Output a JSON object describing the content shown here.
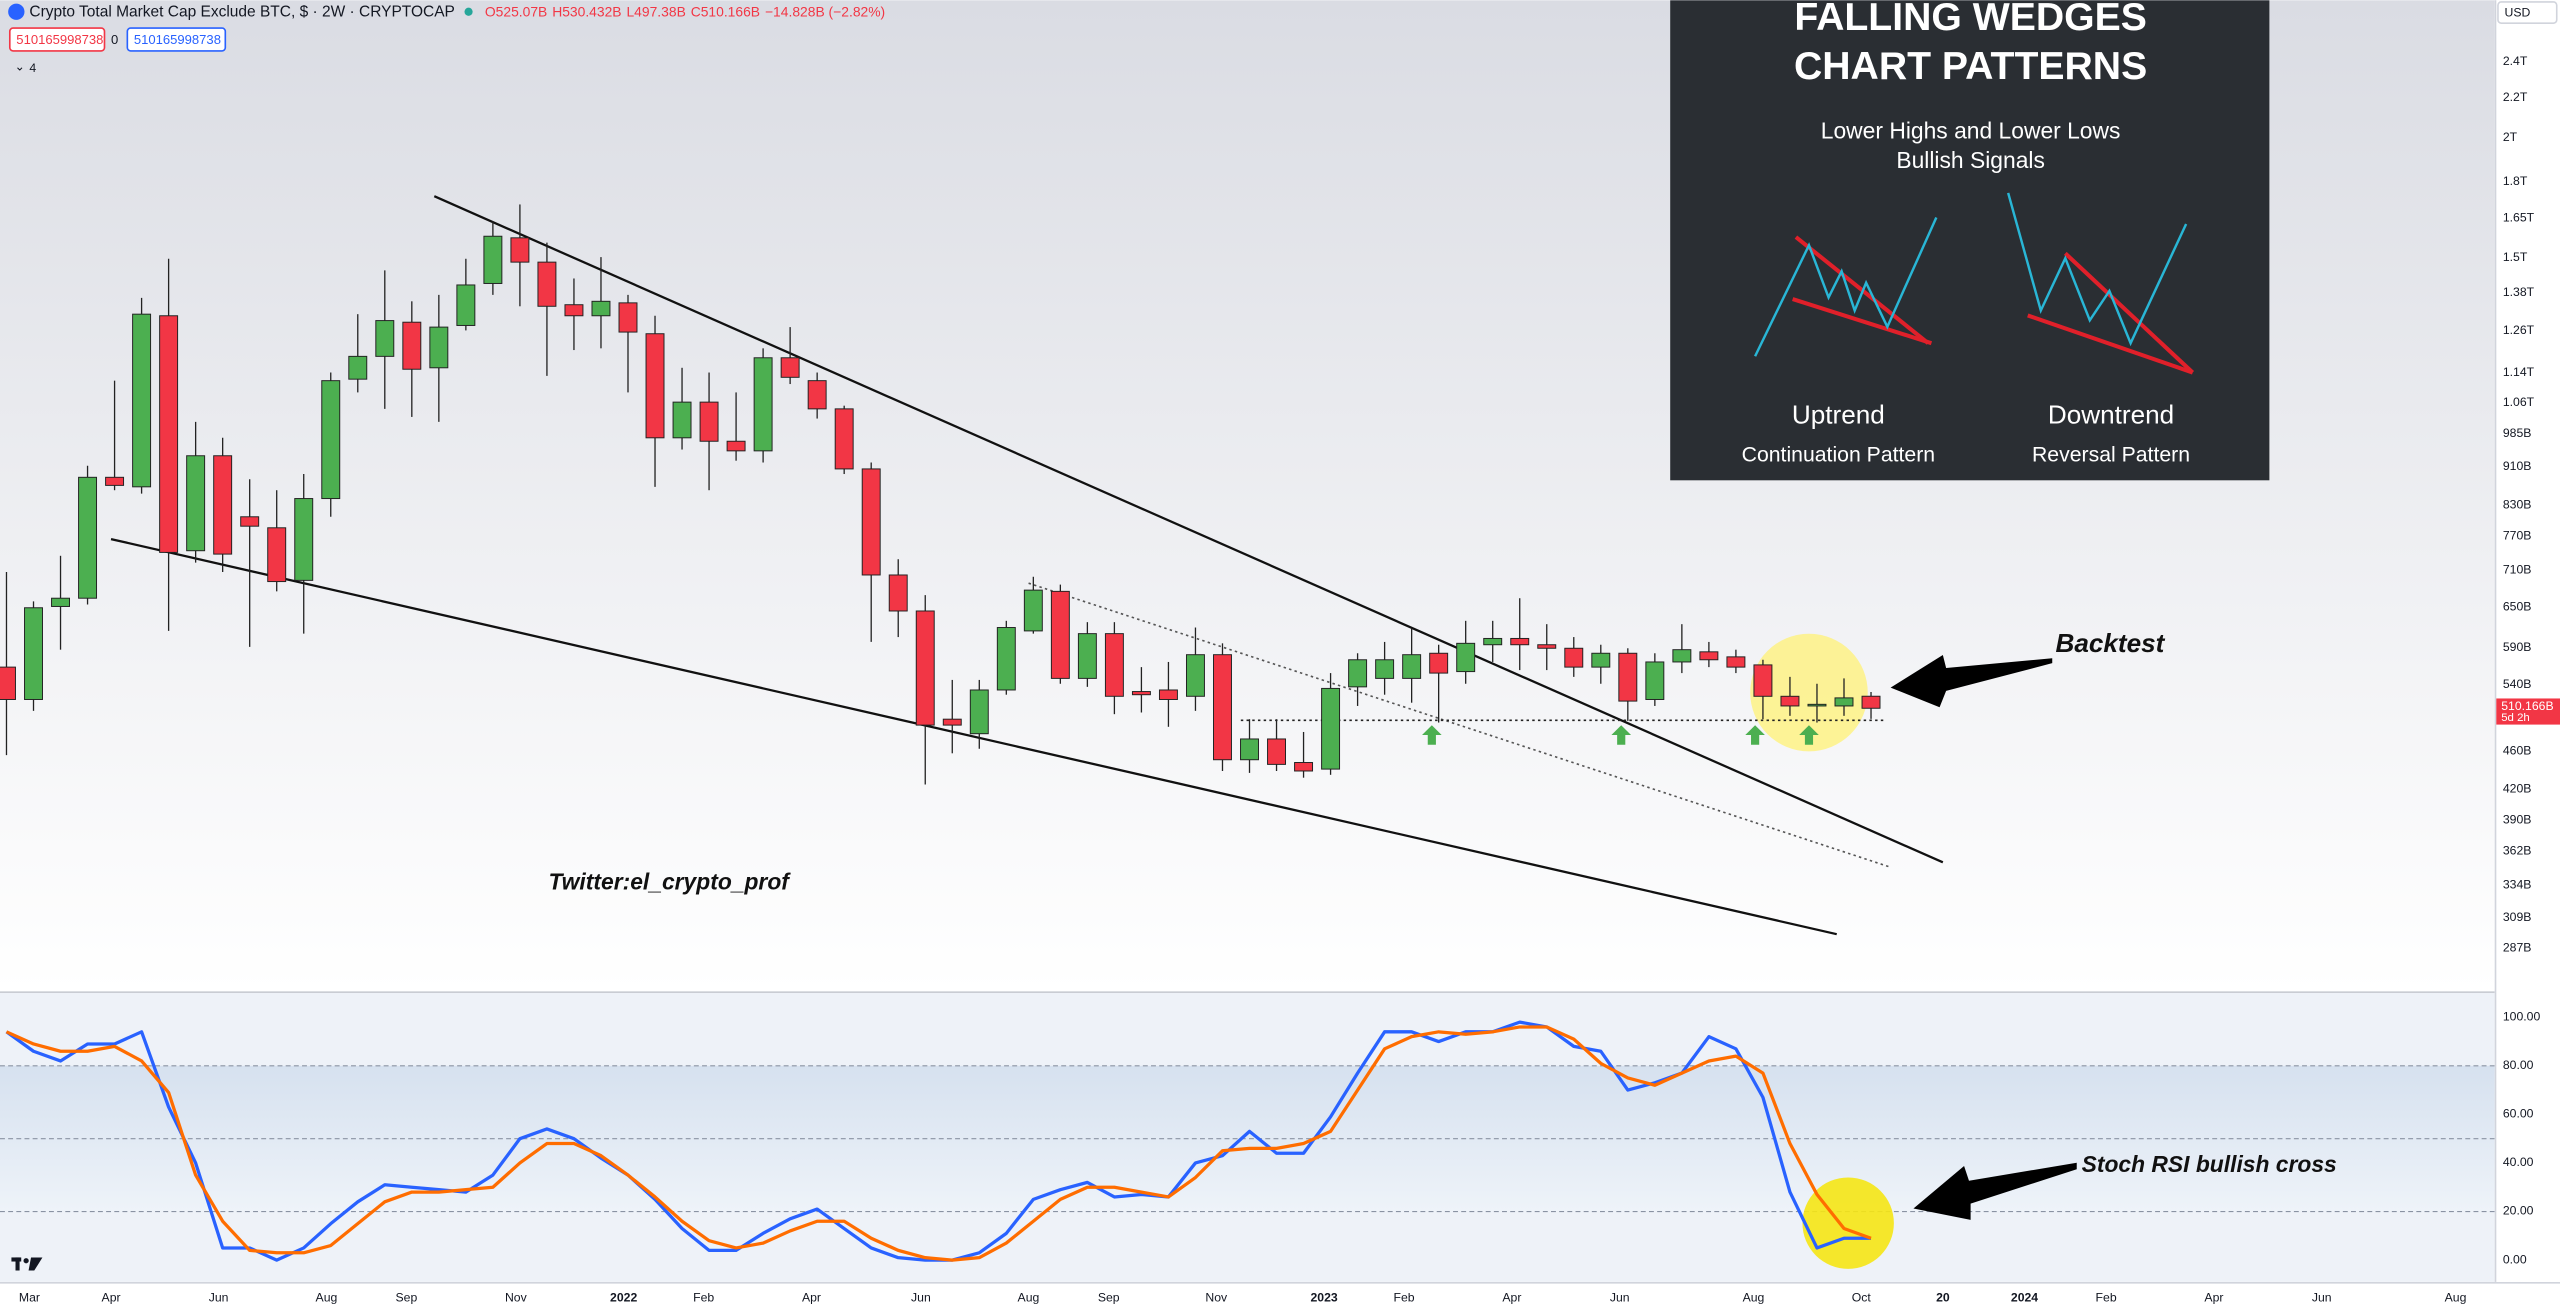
{
  "header": {
    "symbol": "Crypto Total Market Cap Exclude BTC, $ · 2W · CRYPTOCAP",
    "ohlc": [
      "O525.07B",
      "H530.432B",
      "L497.38B",
      "C510.166B",
      "−14.828B (−2.82%)"
    ],
    "bid": "510165998738",
    "spread": "0",
    "ask": "510165998738",
    "indicators": "4",
    "currency": "USD"
  },
  "infographic": {
    "title": [
      "FALLING WEDGES",
      "CHART PATTERNS"
    ],
    "subtitle": [
      "Lower Highs and Lower Lows",
      "Bullish Signals"
    ],
    "patterns": [
      {
        "name": "Uptrend",
        "kind": "Continuation Pattern"
      },
      {
        "name": "Downtrend",
        "kind": "Reversal Pattern"
      }
    ]
  },
  "chart_data": [
    {
      "type": "candlestick",
      "log_scale": true,
      "up_color": "#4caf50",
      "down_color": "#f23645",
      "x": [
        0,
        1,
        2,
        3,
        4,
        5,
        6,
        7,
        8,
        9,
        10,
        11,
        12,
        13,
        14,
        15,
        16,
        17,
        18,
        19,
        20,
        21,
        22,
        23,
        24,
        25,
        26,
        27,
        28,
        29,
        30,
        31,
        32,
        33,
        34,
        35,
        36,
        37,
        38,
        39,
        40,
        41,
        42,
        43,
        44,
        45,
        46,
        47,
        48,
        49,
        50,
        51,
        52,
        53,
        54,
        55,
        56,
        57,
        58,
        59,
        60,
        61,
        62,
        63,
        64,
        65,
        66,
        67,
        68,
        69
      ],
      "open": [
        563,
        521,
        651,
        664,
        887,
        867,
        1306,
        744,
        934,
        807,
        786,
        693,
        843,
        1122,
        1185,
        1286,
        1153,
        1276,
        1411,
        1574,
        1485,
        1341,
        1306,
        1347,
        1251,
        975,
        1062,
        967,
        945,
        1181,
        1118,
        1045,
        905,
        702,
        644,
        497,
        480,
        533,
        614,
        675,
        548,
        610,
        531,
        533,
        525,
        580,
        451,
        474,
        448,
        441,
        537,
        548,
        548,
        582,
        557,
        594,
        603,
        594,
        589,
        563,
        582,
        521,
        570,
        584,
        577,
        566,
        525,
        513,
        513,
        525.07
      ],
      "high": [
        707,
        659,
        735,
        912,
        1118,
        1363,
        1497,
        1013,
        975,
        883,
        860,
        894,
        1140,
        1311,
        1456,
        1352,
        1373,
        1497,
        1638,
        1705,
        1556,
        1428,
        1503,
        1373,
        1306,
        1153,
        1140,
        1087,
        1208,
        1271,
        1140,
        1053,
        919,
        729,
        669,
        546,
        546,
        629,
        699,
        686,
        627,
        627,
        563,
        570,
        619,
        596,
        497,
        497,
        482,
        555,
        582,
        598,
        617,
        594,
        629,
        629,
        664,
        624,
        605,
        594,
        589,
        582,
        624,
        598,
        587,
        573,
        550,
        541,
        548,
        530.432
      ],
      "low": [
        456,
        507,
        587,
        654,
        860,
        853,
        614,
        723,
        707,
        591,
        675,
        610,
        807,
        1087,
        1045,
        1025,
        1013,
        1261,
        1373,
        1336,
        1131,
        1203,
        1208,
        1087,
        867,
        948,
        860,
        923,
        919,
        1109,
        1021,
        894,
        598,
        605,
        425,
        458,
        463,
        527,
        610,
        541,
        537,
        503,
        505,
        488,
        507,
        439,
        437,
        439,
        432,
        435,
        513,
        527,
        517,
        493,
        541,
        570,
        559,
        559,
        550,
        541,
        495,
        513,
        555,
        563,
        555,
        497,
        501,
        493,
        501,
        497.38
      ],
      "close": [
        521,
        649,
        664,
        887,
        870,
        1311,
        741,
        934,
        738,
        789,
        691,
        843,
        1118,
        1185,
        1291,
        1149,
        1271,
        1406,
        1580,
        1485,
        1336,
        1306,
        1352,
        1256,
        975,
        1062,
        967,
        945,
        1181,
        1127,
        1045,
        905,
        702,
        644,
        490,
        490,
        533,
        619,
        677,
        548,
        610,
        525,
        527,
        521,
        580,
        451,
        474,
        446,
        439,
        535,
        573,
        573,
        580,
        555,
        596,
        603,
        594,
        589,
        563,
        582,
        519,
        570,
        587,
        573,
        563,
        525,
        513,
        515,
        523,
        510.166
      ],
      "xlim": [
        -0.24,
        92.08
      ],
      "ylim": [
        259,
        2780
      ],
      "xticks": [
        {
          "value": 0.85,
          "label": "Mar"
        },
        {
          "value": 3.87,
          "label": "Apr"
        },
        {
          "value": 7.85,
          "label": "Jun"
        },
        {
          "value": 11.84,
          "label": "Aug"
        },
        {
          "value": 14.8,
          "label": "Sep"
        },
        {
          "value": 18.85,
          "label": "Nov"
        },
        {
          "value": 22.84,
          "label": "2022"
        },
        {
          "value": 25.8,
          "label": "Feb"
        },
        {
          "value": 29.79,
          "label": "Apr"
        },
        {
          "value": 33.84,
          "label": "Jun"
        },
        {
          "value": 37.82,
          "label": "Aug"
        },
        {
          "value": 40.79,
          "label": "Sep"
        },
        {
          "value": 44.77,
          "label": "Nov"
        },
        {
          "value": 48.76,
          "label": "2023"
        },
        {
          "value": 51.72,
          "label": "Feb"
        },
        {
          "value": 55.71,
          "label": "Apr"
        },
        {
          "value": 59.7,
          "label": "Jun"
        },
        {
          "value": 64.65,
          "label": "Aug"
        },
        {
          "value": 68.64,
          "label": "Oct"
        },
        {
          "value": 71.66,
          "label": "20"
        },
        {
          "value": 74.68,
          "label": "2024"
        },
        {
          "value": 77.7,
          "label": "Feb"
        },
        {
          "value": 81.69,
          "label": "Apr"
        },
        {
          "value": 85.68,
          "label": "Jun"
        },
        {
          "value": 90.63,
          "label": "Aug"
        }
      ],
      "yticks": [
        {
          "value": 2400,
          "label": "2.4T"
        },
        {
          "value": 2200,
          "label": "2.2T"
        },
        {
          "value": 2000,
          "label": "2T"
        },
        {
          "value": 1800,
          "label": "1.8T"
        },
        {
          "value": 1650,
          "label": "1.65T"
        },
        {
          "value": 1500,
          "label": "1.5T"
        },
        {
          "value": 1380,
          "label": "1.38T"
        },
        {
          "value": 1260,
          "label": "1.26T"
        },
        {
          "value": 1140,
          "label": "1.14T"
        },
        {
          "value": 1060,
          "label": "1.06T"
        },
        {
          "value": 985,
          "label": "985B"
        },
        {
          "value": 910,
          "label": "910B"
        },
        {
          "value": 830,
          "label": "830B"
        },
        {
          "value": 770,
          "label": "770B"
        },
        {
          "value": 710,
          "label": "710B"
        },
        {
          "value": 650,
          "label": "650B"
        },
        {
          "value": 590,
          "label": "590B"
        },
        {
          "value": 540,
          "label": "540B"
        },
        {
          "value": 460,
          "label": "460B"
        },
        {
          "value": 420,
          "label": "420B"
        },
        {
          "value": 390,
          "label": "390B"
        },
        {
          "value": 362,
          "label": "362B"
        },
        {
          "value": 334,
          "label": "334B"
        },
        {
          "value": 309,
          "label": "309B"
        },
        {
          "value": 287,
          "label": "287B"
        }
      ],
      "last_label": "510.166B",
      "countdown": "5d 2h",
      "annotations": [
        "Backtest",
        "Twitter:el_crypto_prof"
      ]
    },
    {
      "type": "line",
      "x": [
        0,
        1,
        2,
        3,
        4,
        5,
        6,
        7,
        8,
        9,
        10,
        11,
        12,
        13,
        14,
        15,
        16,
        17,
        18,
        19,
        20,
        21,
        22,
        23,
        24,
        25,
        26,
        27,
        28,
        29,
        30,
        31,
        32,
        33,
        34,
        35,
        36,
        37,
        38,
        39,
        40,
        41,
        42,
        43,
        44,
        45,
        46,
        47,
        48,
        49,
        50,
        51,
        52,
        53,
        54,
        55,
        56,
        57,
        58,
        59,
        60,
        61,
        62,
        63,
        64,
        65,
        66,
        67,
        68,
        69
      ],
      "series": [
        {
          "color": "#2962ff",
          "values": [
            94,
            86,
            82,
            89,
            89,
            94,
            63,
            40,
            5,
            5,
            0,
            5,
            15,
            24,
            31,
            30,
            29,
            28,
            35,
            50,
            54,
            50,
            42,
            35,
            25,
            13,
            4,
            4,
            11,
            17,
            21,
            13,
            5,
            1,
            0,
            0,
            3,
            11,
            25,
            29,
            32,
            26,
            27,
            26,
            40,
            43,
            53,
            44,
            44,
            59,
            77,
            94,
            94,
            90,
            94,
            94,
            98,
            96,
            88,
            86,
            70,
            73,
            77,
            92,
            87,
            67,
            28,
            5,
            9,
            9
          ]
        },
        {
          "color": "#ff6d00",
          "values": [
            94,
            89,
            86,
            86,
            88,
            82,
            69,
            35,
            16,
            4,
            3,
            3,
            6,
            15,
            24,
            28,
            28,
            29,
            30,
            40,
            48,
            48,
            43,
            35,
            26,
            16,
            8,
            5,
            7,
            12,
            16,
            16,
            9,
            4,
            1,
            0,
            1,
            7,
            16,
            25,
            30,
            30,
            28,
            26,
            34,
            45,
            46,
            46,
            48,
            53,
            70,
            87,
            92,
            94,
            93,
            94,
            96,
            96,
            91,
            81,
            75,
            72,
            77,
            82,
            84,
            77,
            48,
            27,
            13,
            9
          ]
        }
      ],
      "ylim": [
        -9,
        110
      ],
      "yticks": [
        {
          "value": 100,
          "label": "100.00"
        },
        {
          "value": 80,
          "label": "80.00"
        },
        {
          "value": 60,
          "label": "60.00"
        },
        {
          "value": 40,
          "label": "40.00"
        },
        {
          "value": 20,
          "label": "20.00"
        },
        {
          "value": 0,
          "label": "0.00"
        }
      ],
      "levels": [
        80,
        50,
        20
      ],
      "annotations": [
        "Stoch RSI bullish cross"
      ]
    }
  ]
}
